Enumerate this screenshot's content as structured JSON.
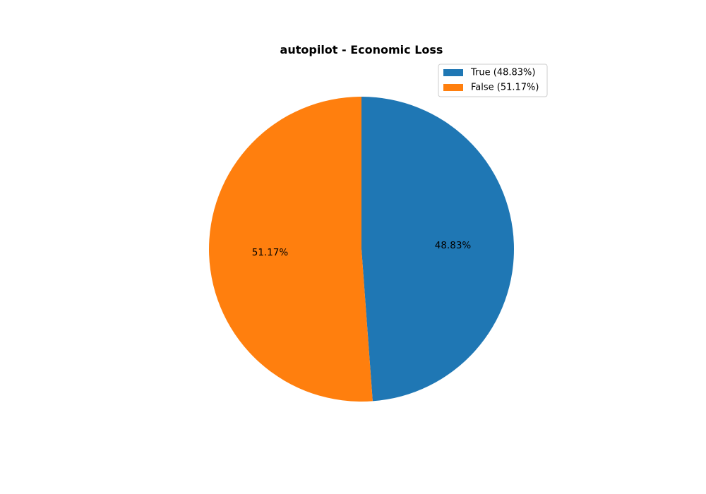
{
  "chart_data": {
    "type": "pie",
    "title": "autopilot - Economic Loss",
    "slices": [
      {
        "label": "True",
        "value": 48.83,
        "display": "48.83%",
        "legend": "True (48.83%)",
        "color": "#1f77b4"
      },
      {
        "label": "False",
        "value": 51.17,
        "display": "51.17%",
        "legend": "False (51.17%)",
        "color": "#ff7f0e"
      }
    ],
    "start_angle_deg": 90,
    "direction": "clockwise",
    "legend_position": "top-right"
  }
}
